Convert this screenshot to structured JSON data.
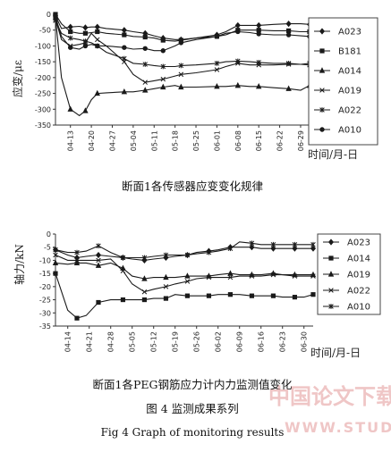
{
  "figure": {
    "number_caption": "图 4   监测成果系列",
    "english_caption": "Fig 4   Graph of monitoring results"
  },
  "watermark": {
    "line1": "中国论文下载",
    "line2": "WWW.STUDA.NET"
  },
  "chart_data": [
    {
      "type": "line",
      "title": "断面1各传感器应变变化规律",
      "ylabel": "应变/με",
      "xlabel": "时间/月-日",
      "ylim": [
        -350,
        0
      ],
      "yticks": [
        0,
        -50,
        -100,
        -150,
        -200,
        -250,
        -300,
        -350
      ],
      "xticks": [
        "04-13",
        "04-20",
        "04-27",
        "05-04",
        "05-11",
        "05-18",
        "05-25",
        "06-01",
        "06-08",
        "06-15",
        "06-22",
        "06-29"
      ],
      "legend_position": "right",
      "x": [
        "04-08",
        "04-10",
        "04-13",
        "04-16",
        "04-18",
        "04-20",
        "04-22",
        "04-25",
        "05-01",
        "05-04",
        "05-08",
        "05-11",
        "05-14",
        "05-18",
        "05-20",
        "05-25",
        "06-01",
        "06-04",
        "06-08",
        "06-12",
        "06-15",
        "06-20",
        "06-25",
        "06-29",
        "07-02"
      ],
      "series": [
        {
          "name": "A023",
          "marker": "diamond",
          "values": [
            -5,
            -45,
            -40,
            -38,
            -42,
            -40,
            -40,
            -45,
            -50,
            -55,
            -60,
            -68,
            -75,
            -80,
            -80,
            -75,
            -65,
            -55,
            -35,
            -35,
            -35,
            -32,
            -30,
            -30,
            -32
          ]
        },
        {
          "name": "B181",
          "marker": "square",
          "values": [
            0,
            -30,
            -55,
            -60,
            -60,
            -58,
            -55,
            -60,
            -65,
            -70,
            -72,
            -75,
            -82,
            -85,
            -82,
            -75,
            -70,
            -65,
            -50,
            -50,
            -50,
            -52,
            -52,
            -55,
            -55
          ]
        },
        {
          "name": "A014",
          "marker": "triangle",
          "values": [
            -10,
            -200,
            -300,
            -320,
            -305,
            -270,
            -250,
            -248,
            -245,
            -245,
            -240,
            -235,
            -230,
            -225,
            -230,
            -230,
            -228,
            -228,
            -225,
            -228,
            -228,
            -232,
            -235,
            -240,
            -225
          ]
        },
        {
          "name": "A019",
          "marker": "x",
          "values": [
            -15,
            -80,
            -100,
            -95,
            -90,
            -60,
            -80,
            -100,
            -150,
            -190,
            -215,
            -210,
            -205,
            -195,
            -190,
            -185,
            -175,
            -165,
            -155,
            -160,
            -160,
            -160,
            -158,
            -158,
            -155
          ]
        },
        {
          "name": "A022",
          "marker": "asterisk",
          "values": [
            -20,
            -60,
            -75,
            -80,
            -85,
            -90,
            -100,
            -120,
            -140,
            -155,
            -158,
            -162,
            -165,
            -165,
            -162,
            -160,
            -155,
            -150,
            -148,
            -150,
            -152,
            -155,
            -155,
            -158,
            -160
          ]
        },
        {
          "name": "A010",
          "marker": "circle",
          "values": [
            -8,
            -70,
            -105,
            -110,
            -100,
            -95,
            -100,
            -100,
            -105,
            -110,
            -108,
            -115,
            -115,
            -100,
            -90,
            -80,
            -70,
            -60,
            -55,
            -58,
            -62,
            -65,
            -65,
            -68,
            -70
          ]
        }
      ]
    },
    {
      "type": "line",
      "title": "断面1各PEG钢筋应力计内力监测值变化",
      "ylabel": "轴力/kN",
      "xlabel": "时间/月-日",
      "ylim": [
        -35,
        0
      ],
      "yticks": [
        0,
        -5,
        -10,
        -15,
        -20,
        -25,
        -30,
        -35
      ],
      "xticks": [
        "04-14",
        "04-21",
        "04-28",
        "05-05",
        "05-12",
        "05-19",
        "05-26",
        "06-02",
        "06-09",
        "06-16",
        "06-23",
        "06-30"
      ],
      "legend_position": "right",
      "x": [
        "04-10",
        "04-14",
        "04-17",
        "04-20",
        "04-24",
        "04-28",
        "05-02",
        "05-05",
        "05-09",
        "05-12",
        "05-16",
        "05-19",
        "05-23",
        "05-26",
        "05-30",
        "06-02",
        "06-06",
        "06-09",
        "06-13",
        "06-16",
        "06-20",
        "06-23",
        "06-27",
        "06-30",
        "07-03"
      ],
      "series": [
        {
          "name": "A023",
          "marker": "diamond",
          "values": [
            -6,
            -8,
            -9,
            -8.5,
            -8,
            -8.5,
            -9,
            -9.5,
            -10,
            -9.5,
            -9,
            -8.5,
            -8,
            -7,
            -6.5,
            -6,
            -5,
            -5,
            -5,
            -5.5,
            -5.5,
            -5.5,
            -5.5,
            -5.5,
            -5.5
          ]
        },
        {
          "name": "A014",
          "marker": "square",
          "values": [
            -15,
            -29,
            -32,
            -31,
            -26,
            -25,
            -25,
            -25,
            -25,
            -24.5,
            -24.5,
            -23,
            -23.5,
            -23.5,
            -23.5,
            -23,
            -23,
            -23,
            -23.5,
            -23.5,
            -23.5,
            -24,
            -24,
            -24,
            -23
          ]
        },
        {
          "name": "A019",
          "marker": "triangle",
          "values": [
            -11,
            -11.5,
            -11,
            -11,
            -12,
            -11,
            -13,
            -16,
            -17,
            -16.5,
            -16.5,
            -16.5,
            -16,
            -16,
            -16,
            -15.5,
            -15,
            -15.5,
            -15.5,
            -15.5,
            -15,
            -15.5,
            -15.5,
            -15.5,
            -15.5
          ]
        },
        {
          "name": "A022",
          "marker": "x",
          "values": [
            -8,
            -10,
            -10,
            -10,
            -10,
            -9.5,
            -14,
            -19,
            -22,
            -21,
            -20,
            -19,
            -18,
            -17,
            -16.5,
            -16.5,
            -16.5,
            -16,
            -16,
            -16,
            -15.5,
            -15.5,
            -16,
            -16,
            -16
          ]
        },
        {
          "name": "A010",
          "marker": "asterisk",
          "values": [
            -6,
            -7,
            -7,
            -6.5,
            -4.5,
            -7,
            -9,
            -9,
            -9,
            -8.5,
            -8,
            -8,
            -8,
            -7.5,
            -7,
            -6.5,
            -5.5,
            -3,
            -3.5,
            -4,
            -4,
            -4,
            -4,
            -4,
            -4
          ]
        }
      ]
    }
  ]
}
